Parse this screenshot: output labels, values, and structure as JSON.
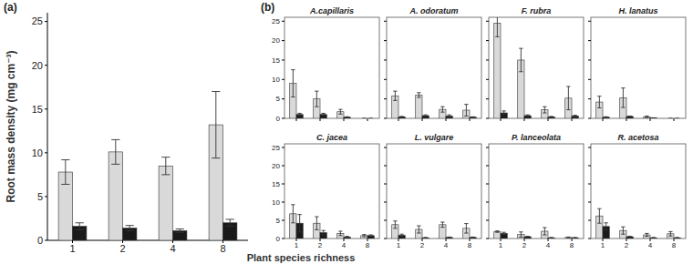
{
  "chart_data": [
    {
      "type": "bar",
      "title": "(a)",
      "x_label": "Plant species richness",
      "y_label": "Root mass density (mg cm⁻³)",
      "categories": [
        "1",
        "2",
        "4",
        "8"
      ],
      "ylim": [
        0,
        26
      ],
      "yticks": [
        0,
        5,
        10,
        15,
        20,
        25
      ],
      "series": [
        {
          "color": "#d9d9d9",
          "values": [
            7.8,
            10.1,
            8.5,
            13.2
          ],
          "errors": [
            1.4,
            1.4,
            1.0,
            3.8
          ]
        },
        {
          "color": "#1a1a1a",
          "values": [
            1.6,
            1.4,
            1.1,
            2.0
          ],
          "errors": [
            0.4,
            0.3,
            0.2,
            0.4
          ]
        }
      ]
    },
    {
      "type": "bar",
      "title": "A.capillaris",
      "subtitle": "(b)",
      "categories": [
        "1",
        "2",
        "4",
        "8"
      ],
      "ylim": [
        0,
        26
      ],
      "yticks": [
        0,
        5,
        10,
        15,
        20,
        25
      ],
      "tick_labels": "y",
      "series": [
        {
          "color": "#d9d9d9",
          "values": [
            9.0,
            5.0,
            1.7,
            0
          ],
          "errors": [
            3.5,
            2.0,
            0.6,
            0
          ]
        },
        {
          "color": "#1a1a1a",
          "values": [
            1.0,
            1.0,
            0.3,
            0
          ],
          "errors": [
            0.3,
            0.3,
            0.1,
            0
          ]
        }
      ]
    },
    {
      "type": "bar",
      "title": "A. odoratum",
      "categories": [
        "1",
        "2",
        "4",
        "8"
      ],
      "ylim": [
        0,
        26
      ],
      "yticks": [
        0,
        5,
        10,
        15,
        20,
        25
      ],
      "tick_labels": false,
      "series": [
        {
          "color": "#d9d9d9",
          "values": [
            5.8,
            6.0,
            2.3,
            2.1
          ],
          "errors": [
            1.2,
            0.6,
            0.7,
            1.5
          ]
        },
        {
          "color": "#1a1a1a",
          "values": [
            0.4,
            0.7,
            0.6,
            0.3
          ],
          "errors": [
            0.1,
            0.2,
            0.3,
            0.1
          ]
        }
      ]
    },
    {
      "type": "bar",
      "title": "F. rubra",
      "categories": [
        "1",
        "2",
        "4",
        "8"
      ],
      "ylim": [
        0,
        26
      ],
      "yticks": [
        0,
        5,
        10,
        15,
        20,
        25
      ],
      "tick_labels": false,
      "series": [
        {
          "color": "#d9d9d9",
          "values": [
            24.5,
            15.0,
            2.2,
            5.2
          ],
          "errors": [
            3.5,
            3.0,
            0.8,
            3.0
          ]
        },
        {
          "color": "#1a1a1a",
          "values": [
            1.4,
            0.7,
            0.4,
            0.6
          ],
          "errors": [
            0.5,
            0.2,
            0.1,
            0.2
          ]
        }
      ]
    },
    {
      "type": "bar",
      "title": "H. lanatus",
      "categories": [
        "1",
        "2",
        "4",
        "8"
      ],
      "ylim": [
        0,
        26
      ],
      "yticks": [
        0,
        5,
        10,
        15,
        20,
        25
      ],
      "tick_labels": false,
      "series": [
        {
          "color": "#d9d9d9",
          "values": [
            4.2,
            5.3,
            0.4,
            0
          ],
          "errors": [
            1.5,
            2.5,
            0.2,
            0
          ]
        },
        {
          "color": "#1a1a1a",
          "values": [
            0.3,
            0.5,
            0.1,
            0
          ],
          "errors": [
            0.1,
            0.1,
            0.05,
            0
          ]
        }
      ]
    },
    {
      "type": "bar",
      "title": "C. jacea",
      "categories": [
        "1",
        "2",
        "4",
        "8"
      ],
      "ylim": [
        0,
        26
      ],
      "yticks": [
        0,
        5,
        10,
        15,
        20,
        25
      ],
      "series": [
        {
          "color": "#d9d9d9",
          "values": [
            6.8,
            4.2,
            1.4,
            0.8
          ],
          "errors": [
            2.5,
            1.8,
            0.6,
            0.3
          ]
        },
        {
          "color": "#1a1a1a",
          "values": [
            4.2,
            1.6,
            0.4,
            0.8
          ],
          "errors": [
            2.4,
            0.6,
            0.2,
            0.2
          ]
        }
      ]
    },
    {
      "type": "bar",
      "title": "L. vulgare",
      "categories": [
        "1",
        "2",
        "4",
        "8"
      ],
      "ylim": [
        0,
        26
      ],
      "yticks": [
        0,
        5,
        10,
        15,
        20,
        25
      ],
      "tick_labels": "x",
      "series": [
        {
          "color": "#d9d9d9",
          "values": [
            3.8,
            2.5,
            3.8,
            2.8
          ],
          "errors": [
            1.0,
            1.0,
            0.7,
            1.3
          ]
        },
        {
          "color": "#1a1a1a",
          "values": [
            0.9,
            0.2,
            0.3,
            0.3
          ],
          "errors": [
            0.3,
            0.1,
            0.1,
            0.1
          ]
        }
      ]
    },
    {
      "type": "bar",
      "title": "P. lanceolata",
      "categories": [
        "1",
        "2",
        "4",
        "8"
      ],
      "ylim": [
        0,
        26
      ],
      "yticks": [
        0,
        5,
        10,
        15,
        20,
        25
      ],
      "tick_labels": "x",
      "series": [
        {
          "color": "#d9d9d9",
          "values": [
            1.9,
            1.1,
            2.0,
            0.3
          ],
          "errors": [
            0.2,
            0.7,
            1.0,
            0.1
          ]
        },
        {
          "color": "#1a1a1a",
          "values": [
            1.4,
            0.5,
            0.2,
            0.2
          ],
          "errors": [
            0.3,
            0.1,
            0.1,
            0.1
          ]
        }
      ]
    },
    {
      "type": "bar",
      "title": "R. acetosa",
      "categories": [
        "1",
        "2",
        "4",
        "8"
      ],
      "ylim": [
        0,
        26
      ],
      "yticks": [
        0,
        5,
        10,
        15,
        20,
        25
      ],
      "tick_labels": "x",
      "series": [
        {
          "color": "#d9d9d9",
          "values": [
            6.2,
            2.2,
            1.0,
            1.3
          ],
          "errors": [
            2.0,
            1.0,
            0.4,
            0.6
          ]
        },
        {
          "color": "#1a1a1a",
          "values": [
            3.3,
            0.5,
            0.2,
            0.2
          ],
          "errors": [
            1.0,
            0.1,
            0.1,
            0.1
          ]
        }
      ]
    }
  ]
}
